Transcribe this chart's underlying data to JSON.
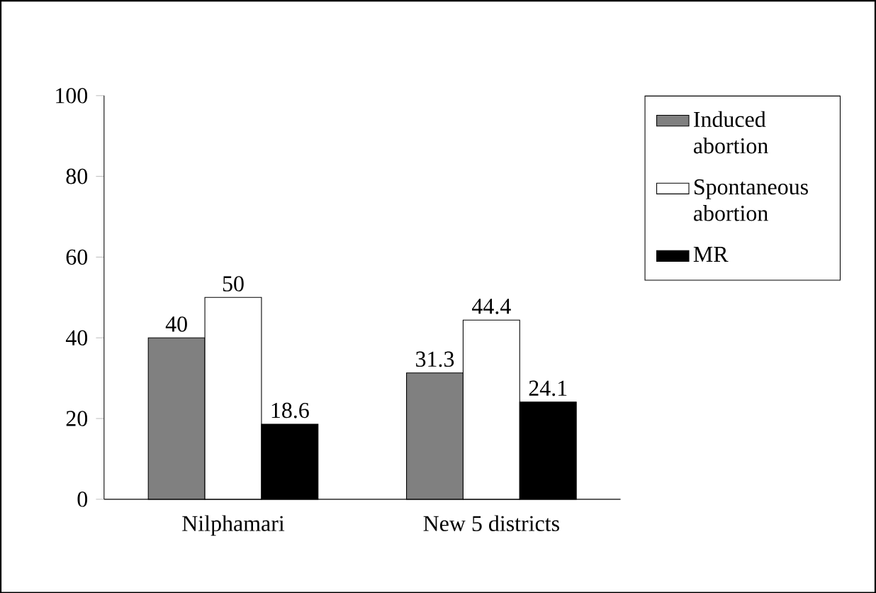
{
  "chart_data": {
    "type": "bar",
    "categories": [
      "Nilphamari",
      "New 5 districts"
    ],
    "series": [
      {
        "name": "Induced abortion",
        "color": "#808080",
        "values": [
          40,
          31.3
        ]
      },
      {
        "name": "Spontaneous abortion",
        "color": "#ffffff",
        "values": [
          50,
          44.4
        ]
      },
      {
        "name": "MR",
        "color": "#000000",
        "values": [
          18.6,
          24.1
        ]
      }
    ],
    "ylim": [
      0,
      100
    ],
    "yticks": [
      0,
      20,
      40,
      60,
      80,
      100
    ],
    "data_labels": true,
    "legend": "right"
  }
}
